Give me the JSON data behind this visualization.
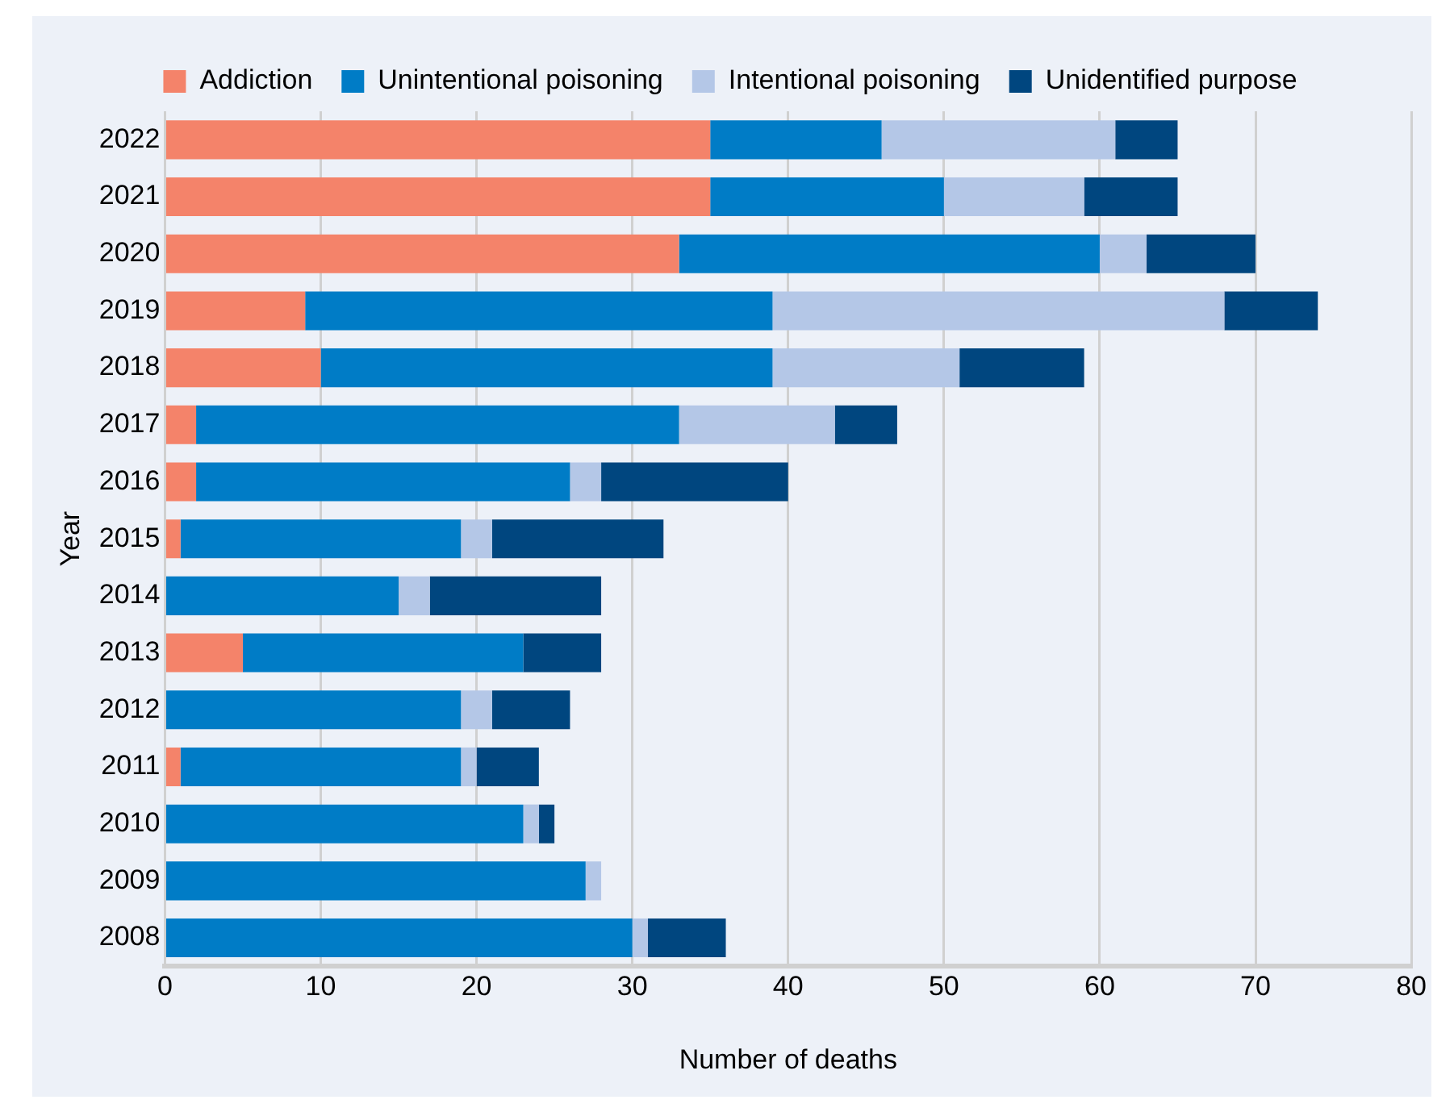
{
  "chart_data": {
    "type": "bar",
    "orientation": "horizontal",
    "stacked": true,
    "xlabel": "Number of deaths",
    "ylabel": "Year",
    "categories": [
      "2022",
      "2021",
      "2020",
      "2019",
      "2018",
      "2017",
      "2016",
      "2015",
      "2014",
      "2013",
      "2012",
      "2011",
      "2010",
      "2009",
      "2008"
    ],
    "series": [
      {
        "name": "Addiction",
        "color": "#f4836a",
        "values": [
          35,
          35,
          33,
          9,
          10,
          2,
          2,
          1,
          0,
          5,
          0,
          1,
          0,
          0,
          0
        ]
      },
      {
        "name": "Unintentional poisoning",
        "color": "#007cc6",
        "values": [
          11,
          15,
          27,
          30,
          29,
          31,
          24,
          18,
          15,
          18,
          19,
          18,
          23,
          27,
          30
        ]
      },
      {
        "name": "Intentional poisoning",
        "color": "#b4c7e7",
        "values": [
          15,
          9,
          3,
          29,
          12,
          10,
          2,
          2,
          2,
          0,
          2,
          1,
          1,
          1,
          1
        ]
      },
      {
        "name": "Unidentified purpose",
        "color": "#00467f",
        "values": [
          4,
          6,
          7,
          6,
          8,
          4,
          12,
          11,
          11,
          5,
          5,
          4,
          1,
          0,
          5
        ]
      }
    ],
    "xlim": [
      0,
      80
    ],
    "xticks": [
      0,
      10,
      20,
      30,
      40,
      50,
      60,
      70,
      80
    ],
    "grid": "x",
    "legend": "top"
  }
}
